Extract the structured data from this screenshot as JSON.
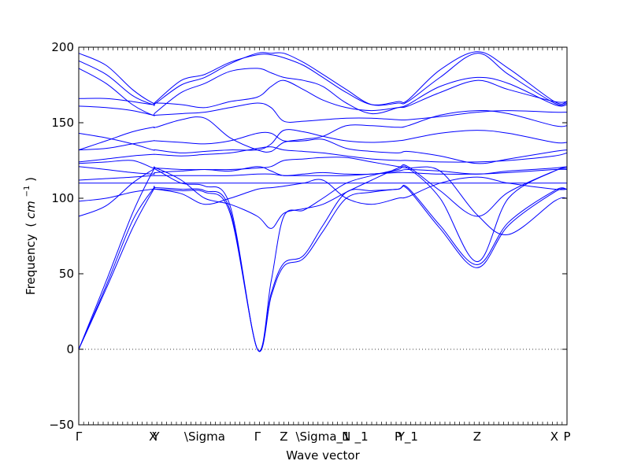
{
  "chart_data": {
    "type": "line",
    "title": "",
    "xlabel": "Wave vector",
    "ylabel": "Frequency",
    "ylabel_unit_parts": [
      "(",
      "cm",
      "−1",
      ")"
    ],
    "ylim": [
      -50,
      200
    ],
    "yticks": [
      -50,
      0,
      50,
      100,
      150,
      200
    ],
    "xlim": [
      0,
      5.0
    ],
    "grid": false,
    "line_color": "#0000ff",
    "zero_line_color": "#000000",
    "high_symmetry_points": [
      {
        "label": "Γ",
        "x": 0.0
      },
      {
        "label": "X",
        "x": 0.76
      },
      {
        "label": "Y",
        "x": 0.79
      },
      {
        "label": "\\Sigma",
        "x": 1.29
      },
      {
        "label": "Γ",
        "x": 1.83
      },
      {
        "label": "Z",
        "x": 2.1
      },
      {
        "label": "\\Sigma_1",
        "x": 2.5
      },
      {
        "label": "N",
        "x": 2.74
      },
      {
        "label": "_1",
        "x": 2.86
      },
      {
        "label": "P",
        "x": 3.27
      },
      {
        "label": "Y_1",
        "x": 3.37
      },
      {
        "label": "Z",
        "x": 4.08
      },
      {
        "label": "X",
        "x": 4.87
      },
      {
        "label": "P",
        "x": 5.0
      }
    ],
    "series": [
      {
        "x": [
          0,
          0.28,
          0.55,
          0.76,
          0.79,
          1.05,
          1.29,
          1.55,
          1.83,
          1.97,
          2.1,
          2.3,
          2.5,
          2.74,
          3.0,
          3.27,
          3.37,
          3.7,
          4.08,
          4.4,
          4.87,
          5.0
        ],
        "y": [
          0,
          40,
          80,
          105,
          106,
          105,
          104,
          90,
          0,
          35,
          55,
          60,
          78,
          100,
          104,
          106,
          106,
          80,
          54,
          82,
          104,
          106
        ]
      },
      {
        "x": [
          0,
          0.28,
          0.55,
          0.76,
          0.79,
          1.05,
          1.29,
          1.55,
          1.83,
          1.97,
          2.1,
          2.3,
          2.5,
          2.74,
          3.0,
          3.27,
          3.37,
          3.7,
          4.08,
          4.4,
          4.87,
          5.0
        ],
        "y": [
          0,
          42,
          85,
          106,
          107,
          106,
          105,
          92,
          0,
          37,
          57,
          62,
          82,
          104,
          105,
          106,
          107,
          82,
          56,
          84,
          105,
          106
        ]
      },
      {
        "x": [
          0,
          0.28,
          0.55,
          0.76,
          0.79,
          1.05,
          1.29,
          1.55,
          1.83,
          1.97,
          2.1,
          2.3,
          2.5,
          2.74,
          3.0,
          3.27,
          3.37,
          3.7,
          4.08,
          4.4,
          4.87,
          5.0
        ],
        "y": [
          0,
          45,
          90,
          118,
          119,
          110,
          108,
          95,
          0,
          45,
          88,
          92,
          100,
          110,
          115,
          119,
          120,
          100,
          58,
          100,
          118,
          120
        ]
      },
      {
        "x": [
          0,
          0.28,
          0.55,
          0.76,
          0.79,
          1.05,
          1.29,
          1.55,
          1.83,
          1.97,
          2.1,
          2.3,
          2.5,
          2.74,
          3.0,
          3.27,
          3.37,
          3.7,
          4.08,
          4.4,
          4.87,
          5.0
        ],
        "y": [
          88,
          95,
          110,
          119,
          120,
          112,
          100,
          96,
          88,
          80,
          90,
          93,
          96,
          104,
          112,
          120,
          121,
          105,
          88,
          104,
          118,
          120
        ]
      },
      {
        "x": [
          0,
          0.28,
          0.55,
          0.76,
          0.79,
          1.05,
          1.29,
          1.55,
          1.83,
          1.97,
          2.1,
          2.3,
          2.5,
          2.74,
          3.0,
          3.27,
          3.37,
          3.7,
          4.08,
          4.4,
          4.87,
          5.0
        ],
        "y": [
          98,
          100,
          104,
          106,
          106,
          103,
          96,
          100,
          106,
          107,
          108,
          110,
          112,
          100,
          96,
          100,
          101,
          110,
          114,
          110,
          106,
          106
        ]
      },
      {
        "x": [
          0,
          0.28,
          0.55,
          0.76,
          0.79,
          1.05,
          1.29,
          1.55,
          1.83,
          1.97,
          2.1,
          2.3,
          2.5,
          2.74,
          3.0,
          3.27,
          3.37,
          3.7,
          4.08,
          4.4,
          4.87,
          5.0
        ],
        "y": [
          110,
          110,
          110,
          110,
          110,
          110,
          110,
          110,
          110,
          110,
          110,
          110,
          110,
          110,
          110,
          110,
          110,
          110,
          110,
          110,
          110,
          110
        ]
      },
      {
        "x": [
          0,
          0.28,
          0.55,
          0.76,
          0.79,
          1.05,
          1.29,
          1.55,
          1.83,
          1.97,
          2.1,
          2.3,
          2.5,
          2.74,
          3.0,
          3.27,
          3.37,
          3.7,
          4.08,
          4.4,
          4.87,
          5.0
        ],
        "y": [
          112,
          113,
          114,
          115,
          115,
          115,
          115,
          115,
          116,
          116,
          115,
          115,
          115,
          115,
          116,
          117,
          117,
          116,
          116,
          117,
          119,
          119
        ]
      },
      {
        "x": [
          0,
          0.28,
          0.55,
          0.76,
          0.79,
          1.05,
          1.29,
          1.55,
          1.83,
          1.97,
          2.1,
          2.3,
          2.5,
          2.74,
          3.0,
          3.27,
          3.37,
          3.7,
          4.08,
          4.4,
          4.87,
          5.0
        ],
        "y": [
          121,
          119,
          117,
          116,
          117,
          118,
          119,
          118,
          121,
          118,
          115,
          116,
          117,
          116,
          116,
          118,
          119,
          118,
          116,
          118,
          120,
          121
        ]
      },
      {
        "x": [
          0,
          0.28,
          0.55,
          0.76,
          0.79,
          1.05,
          1.29,
          1.55,
          1.83,
          1.97,
          2.1,
          2.3,
          2.5,
          2.74,
          3.0,
          3.27,
          3.37,
          3.7,
          4.08,
          4.4,
          4.87,
          5.0
        ],
        "y": [
          123,
          124,
          125,
          120,
          120,
          119,
          119,
          119,
          120,
          121,
          125,
          126,
          127,
          127,
          124,
          121,
          120,
          118,
          89,
          76,
          98,
          100
        ]
      },
      {
        "x": [
          0,
          0.28,
          0.55,
          0.76,
          0.79,
          1.05,
          1.29,
          1.55,
          1.83,
          1.97,
          2.1,
          2.3,
          2.5,
          2.74,
          3.0,
          3.27,
          3.37,
          3.7,
          4.08,
          4.4,
          4.87,
          5.0
        ],
        "y": [
          124,
          126,
          128,
          129,
          129,
          128,
          129,
          130,
          133,
          134,
          132,
          131,
          130,
          128,
          126,
          125,
          125,
          124,
          124,
          125,
          128,
          130
        ]
      },
      {
        "x": [
          0,
          0.28,
          0.55,
          0.76,
          0.79,
          1.05,
          1.29,
          1.55,
          1.83,
          1.97,
          2.1,
          2.3,
          2.5,
          2.74,
          3.0,
          3.27,
          3.37,
          3.7,
          4.08,
          4.4,
          4.87,
          5.0
        ],
        "y": [
          132,
          133,
          136,
          138,
          138,
          137,
          136,
          138,
          143,
          143,
          138,
          138,
          139,
          133,
          131,
          130,
          131,
          128,
          123,
          126,
          131,
          132
        ]
      },
      {
        "x": [
          0,
          0.28,
          0.55,
          0.76,
          0.79,
          1.05,
          1.29,
          1.55,
          1.83,
          1.97,
          2.1,
          2.3,
          2.5,
          2.74,
          3.0,
          3.27,
          3.37,
          3.7,
          4.08,
          4.4,
          4.87,
          5.0
        ],
        "y": [
          143,
          140,
          136,
          132,
          132,
          130,
          131,
          132,
          132,
          136,
          145,
          144,
          141,
          138,
          137,
          138,
          139,
          143,
          145,
          143,
          137,
          137
        ]
      },
      {
        "x": [
          0,
          0.28,
          0.55,
          0.76,
          0.79,
          1.05,
          1.29,
          1.55,
          1.83,
          1.97,
          2.1,
          2.3,
          2.5,
          2.74,
          3.0,
          3.27,
          3.37,
          3.7,
          4.08,
          4.4,
          4.87,
          5.0
        ],
        "y": [
          132,
          138,
          144,
          147,
          147,
          152,
          153,
          140,
          132,
          131,
          137,
          139,
          141,
          148,
          148,
          147,
          148,
          155,
          158,
          156,
          148,
          148
        ]
      },
      {
        "x": [
          0,
          0.28,
          0.55,
          0.76,
          0.79,
          1.05,
          1.29,
          1.55,
          1.83,
          1.97,
          2.1,
          2.3,
          2.5,
          2.74,
          3.0,
          3.27,
          3.37,
          3.7,
          4.08,
          4.4,
          4.87,
          5.0
        ],
        "y": [
          161,
          160,
          158,
          155,
          155,
          156,
          157,
          160,
          163,
          160,
          151,
          151,
          152,
          153,
          153,
          152,
          152,
          154,
          157,
          158,
          157,
          157
        ]
      },
      {
        "x": [
          0,
          0.28,
          0.55,
          0.76,
          0.79,
          1.05,
          1.29,
          1.55,
          1.83,
          1.97,
          2.1,
          2.3,
          2.5,
          2.74,
          3.0,
          3.27,
          3.37,
          3.7,
          4.08,
          4.4,
          4.87,
          5.0
        ],
        "y": [
          166,
          166,
          164,
          162,
          163,
          162,
          160,
          164,
          167,
          174,
          178,
          172,
          165,
          160,
          158,
          160,
          161,
          170,
          178,
          172,
          164,
          164
        ]
      },
      {
        "x": [
          0,
          0.28,
          0.55,
          0.76,
          0.79,
          1.05,
          1.29,
          1.55,
          1.83,
          1.97,
          2.1,
          2.3,
          2.5,
          2.74,
          3.0,
          3.27,
          3.37,
          3.7,
          4.08,
          4.4,
          4.87,
          5.0
        ],
        "y": [
          186,
          176,
          162,
          155,
          157,
          170,
          176,
          184,
          186,
          183,
          180,
          178,
          174,
          163,
          156,
          160,
          162,
          174,
          180,
          176,
          162,
          162
        ]
      },
      {
        "x": [
          0,
          0.28,
          0.55,
          0.76,
          0.79,
          1.05,
          1.29,
          1.55,
          1.83,
          1.97,
          2.1,
          2.3,
          2.5,
          2.74,
          3.0,
          3.27,
          3.37,
          3.7,
          4.08,
          4.4,
          4.87,
          5.0
        ],
        "y": [
          191,
          182,
          168,
          162,
          163,
          175,
          180,
          189,
          196,
          196,
          196,
          190,
          182,
          172,
          162,
          163,
          164,
          180,
          196,
          182,
          163,
          163
        ]
      },
      {
        "x": [
          0,
          0.28,
          0.55,
          0.76,
          0.79,
          1.05,
          1.29,
          1.55,
          1.83,
          1.97,
          2.1,
          2.3,
          2.5,
          2.74,
          3.0,
          3.27,
          3.37,
          3.7,
          4.08,
          4.4,
          4.87,
          5.0
        ],
        "y": [
          196,
          188,
          172,
          163,
          164,
          178,
          182,
          190,
          195,
          195,
          193,
          188,
          180,
          170,
          162,
          164,
          165,
          185,
          197,
          186,
          164,
          164
        ]
      }
    ]
  }
}
